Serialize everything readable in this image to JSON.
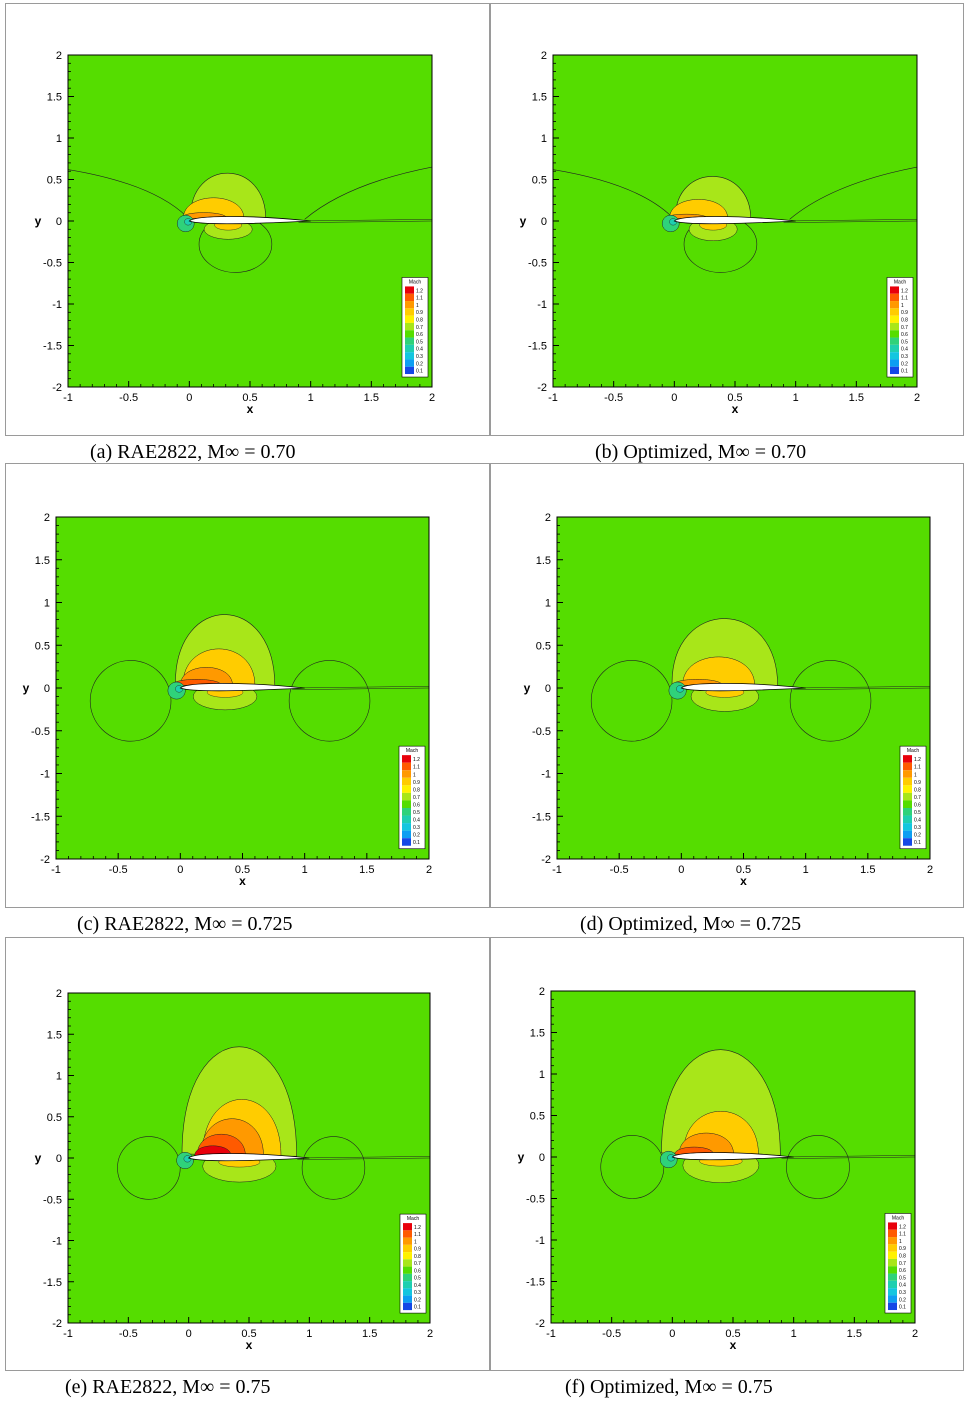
{
  "figure": {
    "panels": [
      {
        "id": "a",
        "caption": "(a) RAE2822, M∞ = 0.70",
        "mach": 0.7,
        "case": "RAE2822"
      },
      {
        "id": "b",
        "caption": "(b) Optimized, M∞ = 0.70",
        "mach": 0.7,
        "case": "Optimized"
      },
      {
        "id": "c",
        "caption": "(c) RAE2822, M∞ = 0.725",
        "mach": 0.725,
        "case": "RAE2822"
      },
      {
        "id": "d",
        "caption": "(d) Optimized, M∞ = 0.725",
        "mach": 0.725,
        "case": "Optimized"
      },
      {
        "id": "e",
        "caption": "(e) RAE2822, M∞ = 0.75",
        "mach": 0.75,
        "case": "RAE2822"
      },
      {
        "id": "f",
        "caption": "(f) Optimized, M∞ = 0.75",
        "mach": 0.75,
        "case": "Optimized"
      }
    ]
  },
  "chart_data": {
    "type": "heatmap",
    "xlabel": "x",
    "ylabel": "y",
    "xlim": [
      -1,
      2
    ],
    "ylim": [
      -2,
      2
    ],
    "x_ticks": [
      "-1",
      "-0.5",
      "0",
      "0.5",
      "1",
      "1.5",
      "2"
    ],
    "y_ticks": [
      "2",
      "1.5",
      "1",
      "0.5",
      "0",
      "-0.5",
      "-1",
      "-1.5",
      "-2"
    ],
    "legend_title": "Mach",
    "legend_levels": [
      "1.2",
      "1.1",
      "1",
      "0.9",
      "0.8",
      "0.7",
      "0.6",
      "0.5",
      "0.4",
      "0.3",
      "0.2",
      "0.1"
    ],
    "legend_colors": [
      "#e8000b",
      "#ff5a00",
      "#ff9900",
      "#ffcc00",
      "#fff200",
      "#a8e619",
      "#55dd00",
      "#2fd27a",
      "#1fcfb0",
      "#14c6df",
      "#0d9ef2",
      "#1447e6"
    ],
    "background_color": "#55dd00",
    "legend_placement": "bottom-right"
  }
}
